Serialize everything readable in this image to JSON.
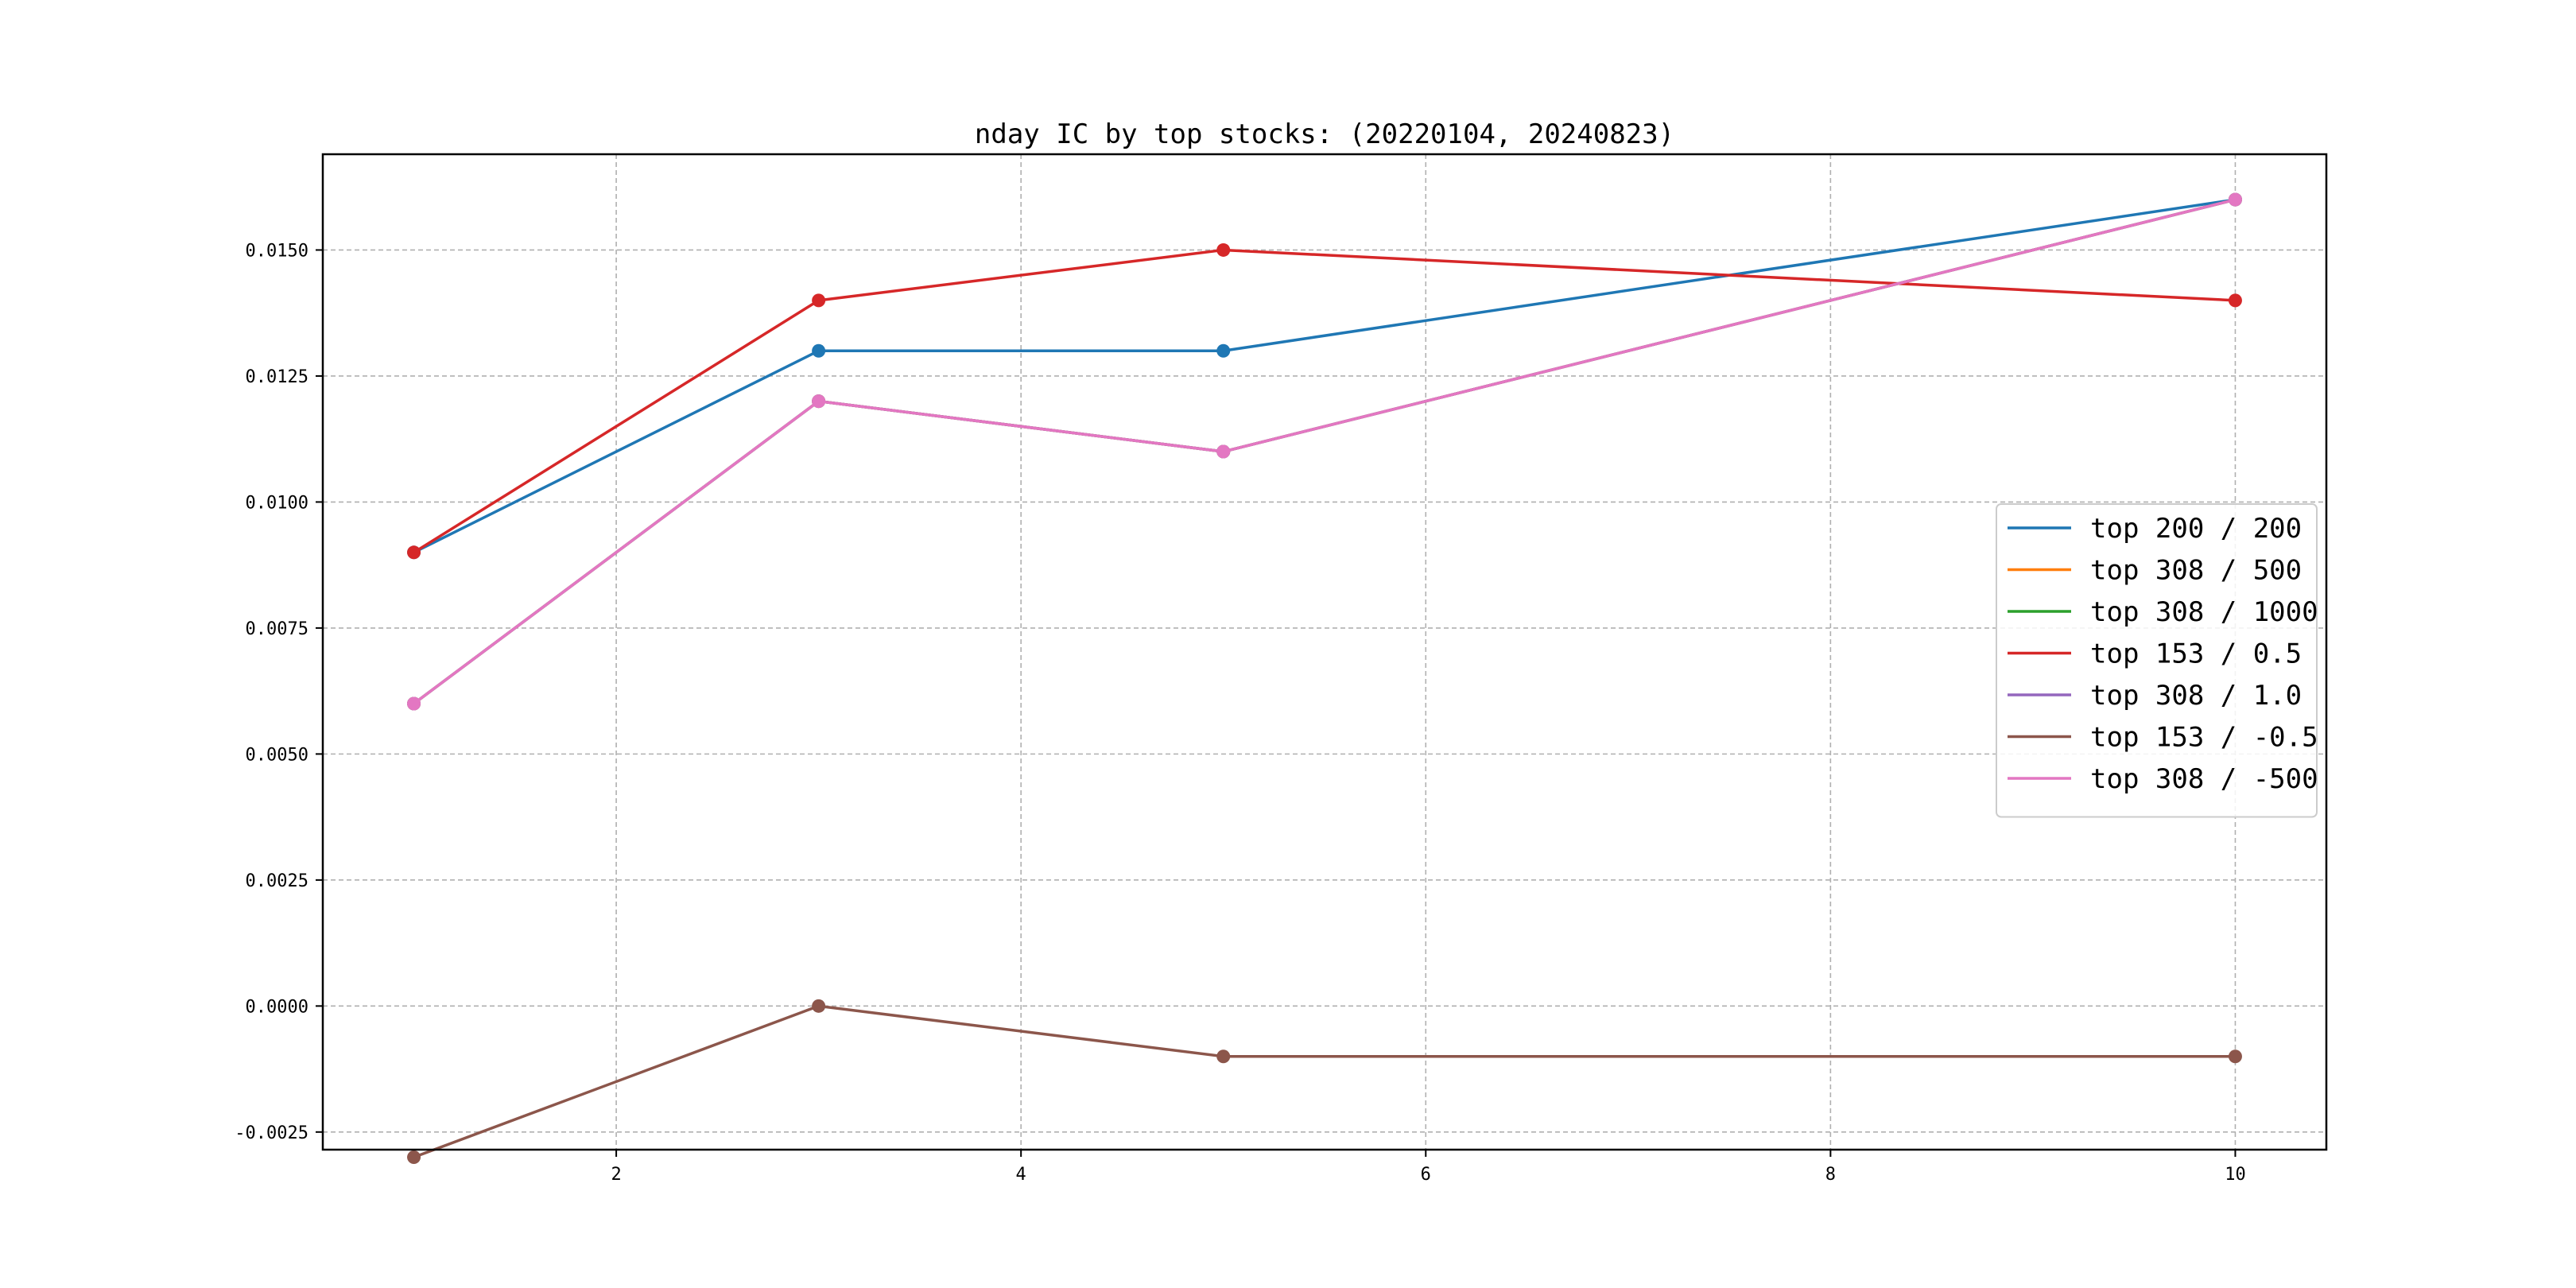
{
  "chart_data": {
    "type": "line",
    "title": "nday IC by top stocks: (20220104, 20240823)",
    "xlabel": "",
    "ylabel": "",
    "xlim": [
      0.55,
      10.45
    ],
    "ylim": [
      -0.00285,
      0.0169
    ],
    "x": [
      1,
      3,
      5,
      10
    ],
    "xticks": [
      2,
      4,
      6,
      8,
      10
    ],
    "yticks": [
      -0.0025,
      0.0,
      0.0025,
      0.005,
      0.0075,
      0.01,
      0.0125,
      0.015
    ],
    "ytick_labels": [
      "-0.0025",
      "0.0000",
      "0.0025",
      "0.0050",
      "0.0075",
      "0.0100",
      "0.0125",
      "0.0150"
    ],
    "grid": true,
    "legend_position": "center-right",
    "series": [
      {
        "name": "top 200 / 200",
        "color": "#1f77b4",
        "values": [
          0.009,
          0.013,
          0.013,
          0.016
        ]
      },
      {
        "name": "top 308 / 500",
        "color": "#ff7f0e",
        "values": [
          0.006,
          0.012,
          0.011,
          0.016
        ]
      },
      {
        "name": "top 308 / 1000",
        "color": "#2ca02c",
        "values": [
          0.006,
          0.012,
          0.011,
          0.016
        ]
      },
      {
        "name": "top 153 / 0.5",
        "color": "#d62728",
        "values": [
          0.009,
          0.014,
          0.015,
          0.014
        ]
      },
      {
        "name": "top 308 / 1.0",
        "color": "#9467bd",
        "values": [
          0.006,
          0.012,
          0.011,
          0.016
        ]
      },
      {
        "name": "top 153 / -0.5",
        "color": "#8c564b",
        "values": [
          -0.003,
          0.0,
          -0.001,
          -0.001
        ]
      },
      {
        "name": "top 308 / -500",
        "color": "#e377c2",
        "values": [
          0.006,
          0.012,
          0.011,
          0.016
        ]
      }
    ]
  }
}
